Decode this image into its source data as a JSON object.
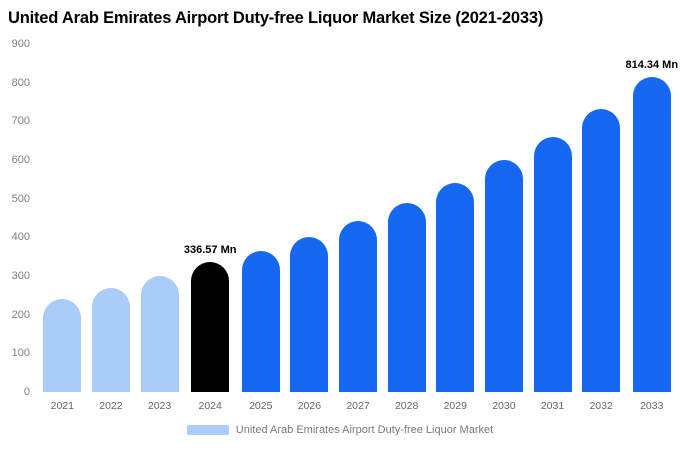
{
  "title": "United Arab Emirates Airport Duty-free Liquor Market Size (2021-2033)",
  "legend": {
    "label": "United Arab Emirates Airport Duty-free Liquor Market",
    "swatch_color": "#a9ccf8"
  },
  "colors": {
    "light_blue": "#a9ccf8",
    "highlight_black": "#000000",
    "blue": "#1668f3"
  },
  "chart_data": {
    "type": "bar",
    "title": "United Arab Emirates Airport Duty-free Liquor Market Size (2021-2033)",
    "categories": [
      "2021",
      "2022",
      "2023",
      "2024",
      "2025",
      "2026",
      "2027",
      "2028",
      "2029",
      "2030",
      "2031",
      "2032",
      "2033"
    ],
    "values": [
      240,
      268,
      300,
      336.57,
      365,
      400,
      443,
      490,
      540,
      600,
      660,
      732,
      814.34
    ],
    "bar_colors": [
      "#a9ccf8",
      "#a9ccf8",
      "#a9ccf8",
      "#000000",
      "#1668f3",
      "#1668f3",
      "#1668f3",
      "#1668f3",
      "#1668f3",
      "#1668f3",
      "#1668f3",
      "#1668f3",
      "#1668f3"
    ],
    "annotations": [
      {
        "category": "2024",
        "text": "336.57 Mn"
      },
      {
        "category": "2033",
        "text": "814.34 Mn"
      }
    ],
    "xlabel": "",
    "ylabel": "",
    "ylim": [
      0,
      900
    ],
    "yticks": [
      0,
      100,
      200,
      300,
      400,
      500,
      600,
      700,
      800,
      900
    ],
    "grid": false,
    "legend_position": "bottom",
    "legend_entries": [
      "United Arab Emirates Airport Duty-free Liquor Market"
    ]
  }
}
